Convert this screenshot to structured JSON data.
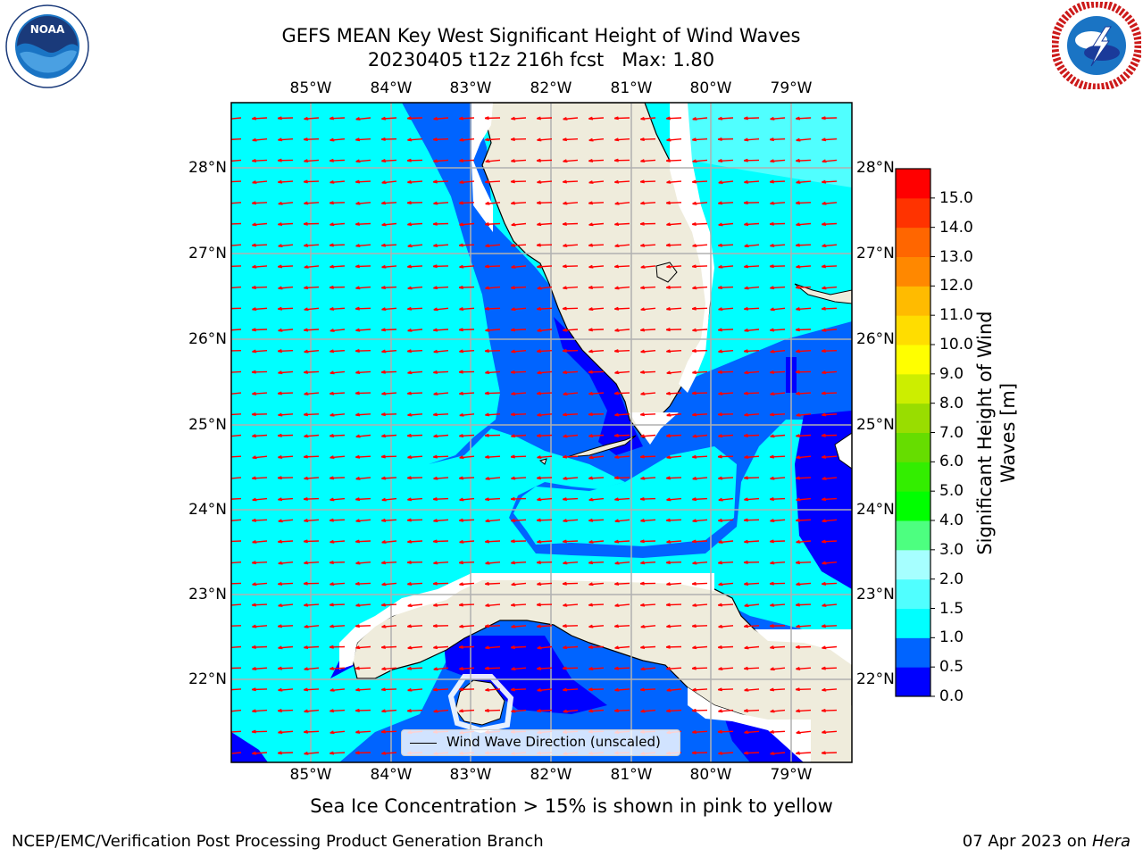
{
  "header": {
    "title_line1": "GEFS MEAN Key West Significant Height of Wind Waves",
    "title_line2": "20230405 t12z 216h fcst   Max: 1.80"
  },
  "logos": {
    "noaa": {
      "text": "NOAA",
      "ring_text": "NATIONAL OCEANIC AND ATMOSPHERIC ADMINISTRATION · U.S. DEPARTMENT OF COMMERCE"
    },
    "nws": {
      "ring_text": "NATIONAL WEATHER SERVICE"
    }
  },
  "map": {
    "lon_labels": [
      "85°W",
      "84°W",
      "83°W",
      "82°W",
      "81°W",
      "80°W",
      "79°W"
    ],
    "lat_labels": [
      "28°N",
      "27°N",
      "26°N",
      "25°N",
      "24°N",
      "23°N",
      "22°N"
    ],
    "legend_label": "Wind Wave Direction (unscaled)",
    "colors": {
      "land": "#efecdc",
      "gridlines": "#b0b0b0",
      "arrows": "#ff0000",
      "coast": "#000000"
    }
  },
  "colorbar": {
    "label": "Significant Height of Wind Waves [m]",
    "tick_labels": [
      "0.0",
      "0.5",
      "1.0",
      "1.5",
      "2.0",
      "3.0",
      "4.0",
      "5.0",
      "6.0",
      "7.0",
      "8.0",
      "9.0",
      "10.0",
      "11.0",
      "12.0",
      "13.0",
      "14.0",
      "15.0"
    ],
    "colors": [
      "#0000ff",
      "#0064ff",
      "#00ffff",
      "#50ffff",
      "#a6ffff",
      "#4dff80",
      "#00ff00",
      "#33ee00",
      "#66dd00",
      "#99dd00",
      "#ccee00",
      "#ffff00",
      "#ffdd00",
      "#ffbb00",
      "#ff8800",
      "#ff6600",
      "#ff3300",
      "#ff0000"
    ]
  },
  "footer": {
    "note": "Sea Ice Concentration > 15% is shown in pink to yellow",
    "left": "NCEP/EMC/Verification Post Processing Product Generation Branch",
    "right_prefix": "07 Apr 2023 on ",
    "right_host": "Hera"
  }
}
